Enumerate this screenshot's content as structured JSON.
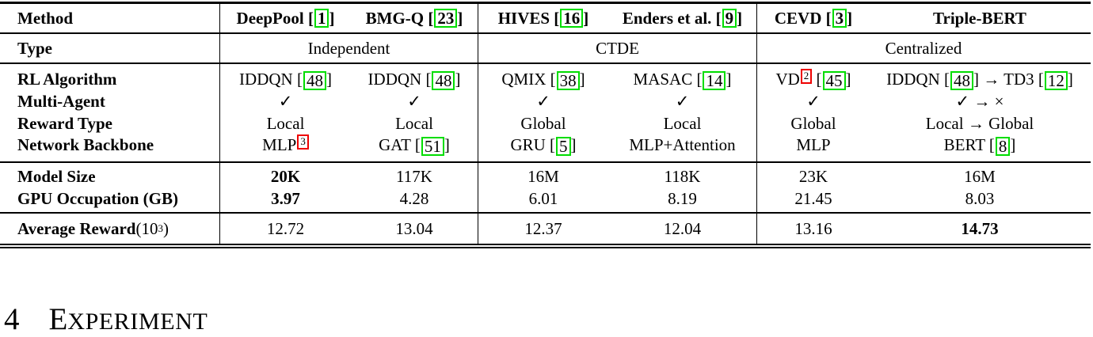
{
  "colors": {
    "cite_border": "#00dd00",
    "footnote_border": "#ee0000",
    "rule": "#000000"
  },
  "header": {
    "row_label": "Method",
    "cells": [
      [
        {
          "t": "text",
          "v": "DeepPool "
        },
        {
          "t": "cite",
          "v": "1"
        }
      ],
      [
        {
          "t": "text",
          "v": "BMG-Q "
        },
        {
          "t": "cite",
          "v": "23"
        }
      ],
      [
        {
          "t": "text",
          "v": "HIVES "
        },
        {
          "t": "cite",
          "v": "16"
        }
      ],
      [
        {
          "t": "text",
          "v": "Enders et al. "
        },
        {
          "t": "cite",
          "v": "9"
        }
      ],
      [
        {
          "t": "text",
          "v": "CEVD "
        },
        {
          "t": "cite",
          "v": "3"
        }
      ],
      [
        {
          "t": "text",
          "v": "Triple-BERT"
        }
      ]
    ]
  },
  "type_row": {
    "row_label": "Type",
    "groups": [
      "Independent",
      "CTDE",
      "Centralized"
    ]
  },
  "spec": {
    "row_labels": [
      "RL Algorithm",
      "Multi-Agent",
      "Reward Type",
      "Network Backbone"
    ],
    "cols": [
      {
        "rl": [
          {
            "t": "text",
            "v": "IDDQN "
          },
          {
            "t": "cite",
            "v": "48"
          }
        ],
        "ma": [
          {
            "t": "text",
            "v": "✓"
          }
        ],
        "reward": [
          {
            "t": "text",
            "v": "Local"
          }
        ],
        "backbone": [
          {
            "t": "text",
            "v": "MLP"
          },
          {
            "t": "fn",
            "v": "3"
          }
        ]
      },
      {
        "rl": [
          {
            "t": "text",
            "v": "IDDQN "
          },
          {
            "t": "cite",
            "v": "48"
          }
        ],
        "ma": [
          {
            "t": "text",
            "v": "✓"
          }
        ],
        "reward": [
          {
            "t": "text",
            "v": "Local"
          }
        ],
        "backbone": [
          {
            "t": "text",
            "v": "GAT "
          },
          {
            "t": "cite",
            "v": "51"
          }
        ]
      },
      {
        "rl": [
          {
            "t": "text",
            "v": "QMIX "
          },
          {
            "t": "cite",
            "v": "38"
          }
        ],
        "ma": [
          {
            "t": "text",
            "v": "✓"
          }
        ],
        "reward": [
          {
            "t": "text",
            "v": "Global"
          }
        ],
        "backbone": [
          {
            "t": "text",
            "v": "GRU "
          },
          {
            "t": "cite",
            "v": "5"
          }
        ]
      },
      {
        "rl": [
          {
            "t": "text",
            "v": "MASAC "
          },
          {
            "t": "cite",
            "v": "14"
          }
        ],
        "ma": [
          {
            "t": "text",
            "v": "✓"
          }
        ],
        "reward": [
          {
            "t": "text",
            "v": "Local"
          }
        ],
        "backbone": [
          {
            "t": "text",
            "v": "MLP+Attention"
          }
        ]
      },
      {
        "rl": [
          {
            "t": "text",
            "v": "VD"
          },
          {
            "t": "fn",
            "v": "2"
          },
          {
            "t": "text",
            "v": " "
          },
          {
            "t": "cite",
            "v": "45"
          }
        ],
        "ma": [
          {
            "t": "text",
            "v": "✓"
          }
        ],
        "reward": [
          {
            "t": "text",
            "v": "Global"
          }
        ],
        "backbone": [
          {
            "t": "text",
            "v": "MLP"
          }
        ]
      },
      {
        "rl": [
          {
            "t": "text",
            "v": "IDDQN "
          },
          {
            "t": "cite",
            "v": "48"
          },
          {
            "t": "text",
            "v": " → TD3 "
          },
          {
            "t": "cite",
            "v": "12"
          }
        ],
        "ma": [
          {
            "t": "text",
            "v": "✓ → ×"
          }
        ],
        "reward": [
          {
            "t": "text",
            "v": "Local → Global"
          }
        ],
        "backbone": [
          {
            "t": "text",
            "v": "BERT "
          },
          {
            "t": "cite",
            "v": "8"
          }
        ]
      }
    ]
  },
  "perf": {
    "row_labels": [
      "Model Size",
      "GPU Occupation (GB)"
    ],
    "cols": [
      {
        "size": [
          {
            "t": "bold",
            "v": "20K"
          }
        ],
        "gpu": [
          {
            "t": "bold",
            "v": "3.97"
          }
        ]
      },
      {
        "size": [
          {
            "t": "text",
            "v": "117K"
          }
        ],
        "gpu": [
          {
            "t": "text",
            "v": "4.28"
          }
        ]
      },
      {
        "size": [
          {
            "t": "text",
            "v": "16M"
          }
        ],
        "gpu": [
          {
            "t": "text",
            "v": "6.01"
          }
        ]
      },
      {
        "size": [
          {
            "t": "text",
            "v": "118K"
          }
        ],
        "gpu": [
          {
            "t": "text",
            "v": "8.19"
          }
        ]
      },
      {
        "size": [
          {
            "t": "text",
            "v": "23K"
          }
        ],
        "gpu": [
          {
            "t": "text",
            "v": "21.45"
          }
        ]
      },
      {
        "size": [
          {
            "t": "text",
            "v": "16M"
          }
        ],
        "gpu": [
          {
            "t": "text",
            "v": "8.03"
          }
        ]
      }
    ]
  },
  "reward": {
    "row_label": [
      {
        "t": "text",
        "v": "Average Reward "
      },
      {
        "t": "norm",
        "v": "(10"
      },
      {
        "t": "sup",
        "v": "3"
      },
      {
        "t": "norm",
        "v": ")"
      }
    ],
    "values": [
      [
        {
          "t": "text",
          "v": "12.72"
        }
      ],
      [
        {
          "t": "text",
          "v": "13.04"
        }
      ],
      [
        {
          "t": "text",
          "v": "12.37"
        }
      ],
      [
        {
          "t": "text",
          "v": "12.04"
        }
      ],
      [
        {
          "t": "text",
          "v": "13.16"
        }
      ],
      [
        {
          "t": "bold",
          "v": "14.73"
        }
      ]
    ]
  },
  "section": {
    "number": "4",
    "title_first": "E",
    "title_rest": "XPERIMENT"
  }
}
